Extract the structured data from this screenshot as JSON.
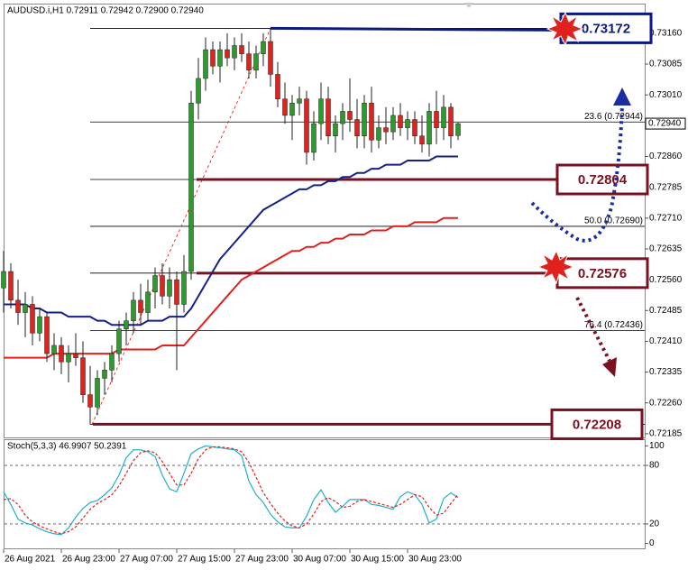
{
  "chart_data": [
    {
      "type": "candlestick",
      "title": "AUDUSD.i,H1  0.72911 0.72942 0.72900 0.72940",
      "categories": [
        "26 Aug 2021",
        null,
        null,
        null,
        null,
        null,
        null,
        null,
        "26 Aug 23:00",
        null,
        null,
        null,
        null,
        null,
        null,
        null,
        "27 Aug 07:00",
        null,
        null,
        null,
        null,
        null,
        null,
        null,
        "27 Aug 15:00",
        null,
        null,
        null,
        null,
        null,
        null,
        null,
        "27 Aug 23:00",
        null,
        null,
        null,
        null,
        null,
        null,
        null,
        "30 Aug 07:00",
        null,
        null,
        null,
        null,
        null,
        null,
        null,
        "30 Aug 15:00",
        null,
        null,
        null,
        null,
        null,
        null,
        null,
        "30 Aug 23:00",
        null,
        null,
        null,
        null,
        null,
        null,
        null
      ],
      "open": [
        0.7254,
        0.7258,
        0.7251,
        0.7248,
        0.725,
        0.7243,
        0.7247,
        0.7238,
        0.724,
        0.7236,
        0.7238,
        0.7237,
        0.7228,
        0.7225,
        0.7232,
        0.7234,
        0.7238,
        0.7244,
        0.7246,
        0.7251,
        0.7248,
        0.7253,
        0.7257,
        0.7252,
        0.7256,
        0.725,
        0.7258,
        0.7299,
        0.7305,
        0.7312,
        0.7308,
        0.7312,
        0.731,
        0.7313,
        0.7311,
        0.7307,
        0.7311,
        0.7314,
        0.7306,
        0.73,
        0.7296,
        0.7299,
        0.73,
        0.7287,
        0.7294,
        0.73,
        0.7291,
        0.7294,
        0.7297,
        0.7295,
        0.7291,
        0.7299,
        0.729,
        0.7293,
        0.7292,
        0.7296,
        0.7293,
        0.7295,
        0.7291,
        0.7289,
        0.7297,
        0.7293,
        0.7298,
        0.72911
      ],
      "high": [
        0.7263,
        0.726,
        0.7256,
        0.7253,
        0.7252,
        0.7249,
        0.7248,
        0.7243,
        0.7242,
        0.724,
        0.7243,
        0.7241,
        0.7235,
        0.7234,
        0.7236,
        0.724,
        0.7246,
        0.7248,
        0.7253,
        0.7255,
        0.7256,
        0.7259,
        0.726,
        0.7259,
        0.7258,
        0.7262,
        0.7302,
        0.731,
        0.7315,
        0.7314,
        0.7314,
        0.7316,
        0.7315,
        0.7316,
        0.7314,
        0.7313,
        0.7316,
        0.73172,
        0.7309,
        0.7304,
        0.7301,
        0.7303,
        0.7302,
        0.7297,
        0.7304,
        0.7303,
        0.7296,
        0.7299,
        0.7305,
        0.73,
        0.7301,
        0.7303,
        0.7296,
        0.7298,
        0.7298,
        0.7299,
        0.7297,
        0.7297,
        0.7296,
        0.7299,
        0.7302,
        0.7301,
        0.7299,
        0.72942
      ],
      "low": [
        0.7248,
        0.7249,
        0.7245,
        0.7242,
        0.724,
        0.7241,
        0.7236,
        0.7234,
        0.7233,
        0.7231,
        0.7235,
        0.7226,
        0.72208,
        0.7223,
        0.7228,
        0.7231,
        0.7236,
        0.724,
        0.7243,
        0.7245,
        0.7246,
        0.7249,
        0.725,
        0.7249,
        0.7234,
        0.7248,
        0.7256,
        0.7295,
        0.7302,
        0.7306,
        0.7304,
        0.7308,
        0.7307,
        0.7309,
        0.7305,
        0.7305,
        0.7308,
        0.7303,
        0.7298,
        0.7294,
        0.729,
        0.7296,
        0.7284,
        0.7285,
        0.729,
        0.7289,
        0.7287,
        0.729,
        0.7292,
        0.7288,
        0.7288,
        0.7287,
        0.7288,
        0.7289,
        0.729,
        0.7291,
        0.729,
        0.7289,
        0.7287,
        0.7286,
        0.7289,
        0.729,
        0.7288,
        0.729
      ],
      "close": [
        0.7258,
        0.7251,
        0.7248,
        0.725,
        0.7243,
        0.7247,
        0.7238,
        0.724,
        0.7236,
        0.7238,
        0.7237,
        0.7228,
        0.7225,
        0.7232,
        0.7234,
        0.7238,
        0.7244,
        0.7246,
        0.7251,
        0.7248,
        0.7253,
        0.7257,
        0.7252,
        0.7256,
        0.725,
        0.7258,
        0.7299,
        0.7305,
        0.7312,
        0.7308,
        0.7312,
        0.731,
        0.7313,
        0.7311,
        0.7307,
        0.7311,
        0.7314,
        0.7306,
        0.73,
        0.7296,
        0.7299,
        0.73,
        0.7287,
        0.7294,
        0.73,
        0.7291,
        0.7294,
        0.7297,
        0.7295,
        0.7291,
        0.7299,
        0.729,
        0.7293,
        0.7292,
        0.7296,
        0.7293,
        0.7295,
        0.7291,
        0.7289,
        0.7297,
        0.7293,
        0.7298,
        0.7291,
        0.7294
      ],
      "up_color": "#2e9a2e",
      "down_color": "#e0211c",
      "overlays": [
        {
          "color": "#14218a",
          "values": [
            0.725,
            0.725,
            0.725,
            0.725,
            0.7249,
            0.7249,
            0.7248,
            0.7248,
            0.7248,
            0.7247,
            0.7247,
            0.7247,
            0.7247,
            0.7246,
            0.7246,
            0.7245,
            0.7245,
            0.7245,
            0.7245,
            0.7245,
            0.7246,
            0.7246,
            0.7246,
            0.7247,
            0.7247,
            0.7247,
            0.7249,
            0.7252,
            0.7255,
            0.7258,
            0.7261,
            0.7263,
            0.7265,
            0.7267,
            0.7269,
            0.7271,
            0.7273,
            0.7274,
            0.7275,
            0.7276,
            0.7277,
            0.7278,
            0.7278,
            0.7279,
            0.7279,
            0.728,
            0.728,
            0.7281,
            0.7281,
            0.7282,
            0.7282,
            0.7283,
            0.7283,
            0.7284,
            0.7284,
            0.7284,
            0.7285,
            0.7285,
            0.7285,
            0.7285,
            0.7286,
            0.7286,
            0.7286,
            0.7286
          ]
        },
        {
          "color": "#e0211c",
          "values": [
            0.7237,
            0.7237,
            0.7237,
            0.7237,
            0.7237,
            0.7237,
            0.7237,
            0.7238,
            0.7238,
            0.7238,
            0.7238,
            0.7238,
            0.7238,
            0.7238,
            0.7238,
            0.7238,
            0.7239,
            0.7239,
            0.7239,
            0.7239,
            0.7239,
            0.7239,
            0.724,
            0.724,
            0.724,
            0.724,
            0.7242,
            0.7244,
            0.7246,
            0.7248,
            0.725,
            0.7252,
            0.7254,
            0.7256,
            0.7257,
            0.7258,
            0.7259,
            0.726,
            0.7261,
            0.7262,
            0.7263,
            0.7263,
            0.7264,
            0.7264,
            0.7265,
            0.7265,
            0.7266,
            0.7266,
            0.7267,
            0.7267,
            0.7267,
            0.7268,
            0.7268,
            0.7268,
            0.7269,
            0.7269,
            0.7269,
            0.727,
            0.727,
            0.727,
            0.727,
            0.7271,
            0.7271,
            0.7271
          ]
        }
      ],
      "ylim": [
        0.72176,
        0.7323
      ],
      "yticks": [
        {
          "value": 0.7316,
          "label": "0.73160"
        },
        {
          "value": 0.73085,
          "label": "0.73085"
        },
        {
          "value": 0.7301,
          "label": "0.73010"
        },
        {
          "value": 0.7286,
          "label": "0.72860"
        },
        {
          "value": 0.72785,
          "label": "0.72785"
        },
        {
          "value": 0.7271,
          "label": "0.72710"
        },
        {
          "value": 0.72635,
          "label": "0.72635"
        },
        {
          "value": 0.7256,
          "label": "0.72560"
        },
        {
          "value": 0.72485,
          "label": "0.72485"
        },
        {
          "value": 0.7241,
          "label": "0.72410"
        },
        {
          "value": 0.72335,
          "label": "0.72335"
        },
        {
          "value": 0.7226,
          "label": "0.72260"
        },
        {
          "value": 0.72185,
          "label": "0.72185"
        }
      ],
      "last_price": {
        "value": 0.7294,
        "label": "0.72940"
      },
      "fib_levels": [
        {
          "value": 0.72944,
          "label": "23.6 (0.72944)"
        },
        {
          "value": 0.7269,
          "label": "50.0 (0.72690)"
        },
        {
          "value": 0.72436,
          "label": "76.4 (0.72436)"
        }
      ],
      "key_levels": [
        {
          "value": 0.73172,
          "color": "#0d1a80"
        },
        {
          "value": 0.72804,
          "color": "#7b1020"
        },
        {
          "value": 0.72576,
          "color": "#7b1020"
        },
        {
          "value": 0.72208,
          "color": "#7b1020"
        }
      ]
    },
    {
      "type": "line",
      "title": "Stoch(5,3,3) 46.9907 50.2391",
      "lines": [
        {
          "color": "#1fb0c8",
          "values": [
            53,
            40,
            25,
            21,
            19,
            15,
            12,
            10,
            9,
            16,
            27,
            36,
            42,
            44,
            50,
            57,
            70,
            88,
            96,
            96,
            94,
            89,
            70,
            56,
            53,
            72,
            92,
            97,
            100,
            99,
            98,
            97,
            96,
            90,
            64,
            50,
            42,
            30,
            22,
            17,
            16,
            16,
            28,
            45,
            55,
            42,
            32,
            38,
            45,
            45,
            45,
            40,
            39,
            37,
            35,
            48,
            53,
            50,
            40,
            21,
            25,
            46,
            52,
            46.9907
          ]
        },
        {
          "color": "#e0211c",
          "dashed": true,
          "values": [
            45,
            46,
            40,
            29,
            22,
            18,
            15,
            12,
            10,
            12,
            17,
            26,
            35,
            41,
            45,
            50,
            59,
            72,
            85,
            93,
            95,
            93,
            84,
            72,
            60,
            60,
            72,
            87,
            96,
            99,
            99,
            98,
            97,
            94,
            83,
            68,
            52,
            41,
            31,
            23,
            18,
            16,
            20,
            30,
            43,
            47,
            43,
            37,
            38,
            43,
            45,
            43,
            41,
            39,
            37,
            40,
            45,
            50,
            48,
            37,
            29,
            31,
            41,
            50.2391
          ]
        }
      ],
      "ylim": [
        -5,
        105
      ],
      "yticks": [
        100,
        80,
        20,
        0
      ],
      "dashed_levels": [
        80,
        20
      ]
    }
  ]
}
